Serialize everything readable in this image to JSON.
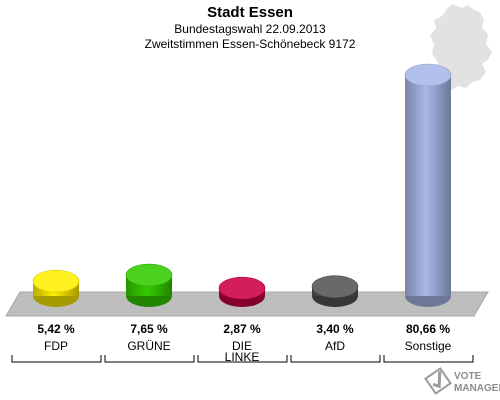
{
  "header": {
    "title": "Stadt Essen",
    "subtitle1": "Bundestagswahl 22.09.2013",
    "subtitle2": "Zweitstimmen Essen-Schönebeck 9172"
  },
  "chart_data": {
    "type": "bar",
    "title": "Stadt Essen",
    "subtitle": [
      "Bundestagswahl 22.09.2013",
      "Zweitstimmen Essen-Schönebeck 9172"
    ],
    "categories": [
      "FDP",
      "GRÜNE",
      "DIE LINKE",
      "AfD",
      "Sonstige"
    ],
    "category_lines": [
      [
        "FDP"
      ],
      [
        "GRÜNE"
      ],
      [
        "DIE",
        "LINKE"
      ],
      [
        "AfD"
      ],
      [
        "Sonstige"
      ]
    ],
    "values": [
      5.42,
      7.65,
      2.87,
      3.4,
      80.66
    ],
    "value_labels": [
      "5,42 %",
      "7,65 %",
      "2,87 %",
      "3,40 %",
      "80,66 %"
    ],
    "unit": "%",
    "colors": [
      "#ffee00",
      "#33cc00",
      "#cc0044",
      "#555555",
      "#a8b8e8"
    ],
    "ylim": [
      0,
      100
    ],
    "grid": false,
    "legend": "none"
  },
  "watermark": {
    "line1": "VOTE",
    "line2": "MANAGER"
  },
  "icons": {
    "map": "germany-map-icon",
    "logo": "vote-manager-logo-icon"
  },
  "colors": {
    "floor": "#bdbdbd",
    "floor_edge": "#a9a9a9",
    "map": "#e2e2e2"
  }
}
